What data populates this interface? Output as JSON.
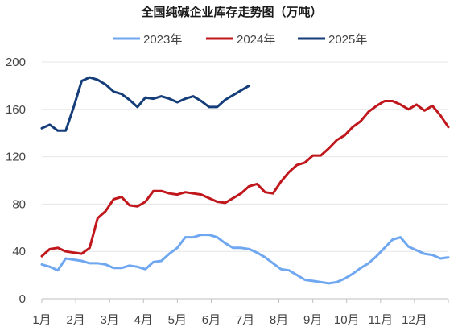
{
  "chart_data": {
    "type": "line",
    "title": "全国纯碱企业库存走势图（万吨）",
    "x_unit": "week",
    "x_ticks": [
      "1月",
      "2月",
      "3月",
      "4月",
      "5月",
      "6月",
      "7月",
      "8月",
      "9月",
      "10月",
      "11月",
      "12月"
    ],
    "ylim": [
      0,
      200
    ],
    "y_ticks": [
      0,
      40,
      80,
      120,
      160,
      200
    ],
    "grid": "horizontal",
    "legend_position": "top",
    "series": [
      {
        "name": "2023年",
        "color": "#6fa8f0",
        "values": [
          29,
          27,
          24,
          34,
          33,
          32,
          30,
          30,
          29,
          26,
          26,
          28,
          27,
          25,
          31,
          32,
          38,
          43,
          52,
          52,
          54,
          54,
          52,
          47,
          43,
          43,
          42,
          39,
          35,
          30,
          25,
          24,
          20,
          16,
          15,
          14,
          13,
          14,
          17,
          21,
          26,
          30,
          36,
          43,
          50,
          52,
          44,
          41,
          38,
          37,
          34,
          35
        ]
      },
      {
        "name": "2024年",
        "color": "#c0171c",
        "values": [
          36,
          42,
          43,
          40,
          39,
          38,
          43,
          68,
          74,
          84,
          86,
          79,
          78,
          82,
          91,
          91,
          89,
          88,
          90,
          89,
          88,
          85,
          82,
          81,
          85,
          89,
          95,
          97,
          90,
          89,
          99,
          107,
          113,
          115,
          121,
          121,
          127,
          134,
          138,
          145,
          150,
          158,
          163,
          167,
          167,
          164,
          160,
          164,
          159,
          163,
          155,
          145
        ]
      },
      {
        "name": "2025年",
        "color": "#143d7a",
        "values": [
          144,
          147,
          142,
          142,
          162,
          184,
          187,
          185,
          181,
          175,
          173,
          168,
          162,
          170,
          169,
          171,
          169,
          166,
          169,
          171,
          167,
          162,
          162,
          168,
          172,
          176,
          180
        ]
      }
    ]
  }
}
